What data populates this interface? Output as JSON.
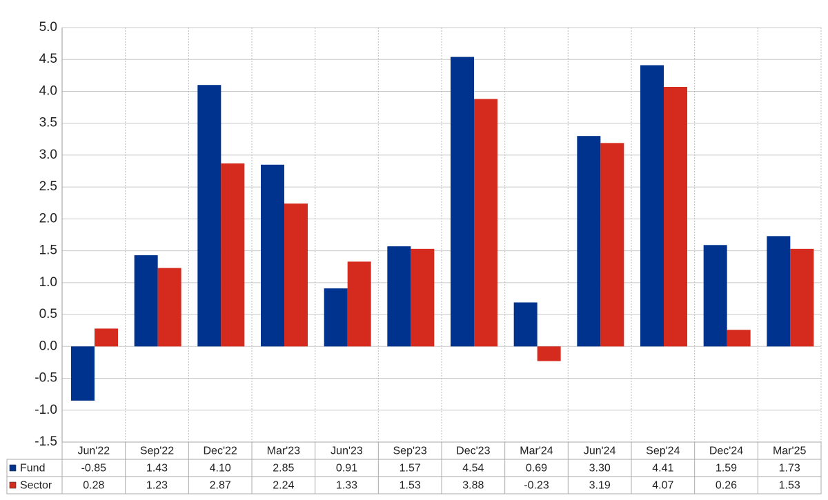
{
  "chart_data": {
    "type": "bar",
    "categories": [
      "Jun'22",
      "Sep'22",
      "Dec'22",
      "Mar'23",
      "Jun'23",
      "Sep'23",
      "Dec'23",
      "Mar'24",
      "Jun'24",
      "Sep'24",
      "Dec'24",
      "Mar'25"
    ],
    "series": [
      {
        "name": "Fund",
        "color": "#00338d",
        "values": [
          -0.85,
          1.43,
          4.1,
          2.85,
          0.91,
          1.57,
          4.54,
          0.69,
          3.3,
          4.41,
          1.59,
          1.73
        ],
        "value_labels": [
          "-0.85",
          "1.43",
          "4.10",
          "2.85",
          "0.91",
          "1.57",
          "4.54",
          "0.69",
          "3.30",
          "4.41",
          "1.59",
          "1.73"
        ]
      },
      {
        "name": "Sector",
        "color": "#d52b1e",
        "values": [
          0.28,
          1.23,
          2.87,
          2.24,
          1.33,
          1.53,
          3.88,
          -0.23,
          3.19,
          4.07,
          0.26,
          1.53
        ],
        "value_labels": [
          "0.28",
          "1.23",
          "2.87",
          "2.24",
          "1.33",
          "1.53",
          "3.88",
          "-0.23",
          "3.19",
          "4.07",
          "0.26",
          "1.53"
        ]
      }
    ],
    "negative_label_color": "#e00000",
    "ylim": [
      -1.5,
      5
    ],
    "yticks": [
      {
        "value": -1.5,
        "label": "-1.5"
      },
      {
        "value": -1,
        "label": "-1.0"
      },
      -0.5,
      {
        "value": 0,
        "label": "0.0"
      },
      0.5,
      {
        "value": 1,
        "label": "1.0"
      },
      1.5,
      {
        "value": 2,
        "label": "2.0"
      },
      2.5,
      {
        "value": 3,
        "label": "3.0"
      },
      3.5,
      {
        "value": 4,
        "label": "4.0"
      },
      4.5,
      {
        "value": 5,
        "label": "5.0"
      }
    ],
    "grid": true
  }
}
